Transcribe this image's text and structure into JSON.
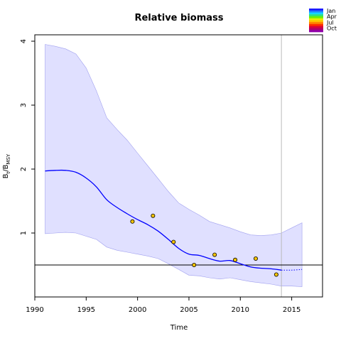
{
  "chart_data": {
    "type": "line",
    "title": "Relative biomass",
    "xlabel": "Time",
    "ylabel": {
      "base": "B",
      "sub1": "t",
      "sep": "/B",
      "sub2": "MSY"
    },
    "xlim": [
      1990,
      2018
    ],
    "ylim": [
      0,
      4.1
    ],
    "xticks": [
      1990,
      1995,
      2000,
      2005,
      2010,
      2015
    ],
    "yticks": [
      1,
      2,
      3,
      4
    ],
    "reference_hline": 0.5,
    "reference_vline": 2014,
    "colors": {
      "estimate": "#0000ff",
      "band_fill": "#e0e0ff",
      "band_edge": "#a0a0ee",
      "points_fill": "#f5c400",
      "reference": "#000000",
      "vline": "#bbbbbb"
    },
    "estimate": {
      "x": [
        1991,
        1992,
        1993,
        1994,
        1995,
        1996,
        1997,
        1998,
        1999,
        2000,
        2001,
        2002,
        2003,
        2004,
        2005,
        2006,
        2007,
        2008,
        2009,
        2010,
        2011,
        2012,
        2013,
        2014
      ],
      "y": [
        1.97,
        1.98,
        1.98,
        1.95,
        1.86,
        1.72,
        1.52,
        1.4,
        1.3,
        1.21,
        1.13,
        1.03,
        0.9,
        0.76,
        0.67,
        0.65,
        0.6,
        0.56,
        0.57,
        0.52,
        0.47,
        0.45,
        0.44,
        0.42
      ]
    },
    "projection": {
      "x": [
        2014,
        2015,
        2016
      ],
      "y": [
        0.42,
        0.42,
        0.43
      ]
    },
    "band": {
      "x": [
        1991,
        1992,
        1993,
        1994,
        1995,
        1996,
        1997,
        1998,
        1999,
        2000,
        2001,
        2002,
        2003,
        2004,
        2005,
        2006,
        2007,
        2008,
        2009,
        2010,
        2011,
        2012,
        2013,
        2014,
        2015,
        2016
      ],
      "upper": [
        3.95,
        3.92,
        3.88,
        3.8,
        3.58,
        3.22,
        2.8,
        2.62,
        2.45,
        2.25,
        2.05,
        1.85,
        1.65,
        1.47,
        1.37,
        1.28,
        1.18,
        1.13,
        1.08,
        1.02,
        0.97,
        0.96,
        0.97,
        1.0,
        1.08,
        1.16
      ],
      "lower": [
        0.99,
        1.0,
        1.01,
        1.0,
        0.95,
        0.9,
        0.78,
        0.73,
        0.7,
        0.67,
        0.64,
        0.6,
        0.52,
        0.43,
        0.34,
        0.33,
        0.3,
        0.28,
        0.3,
        0.27,
        0.24,
        0.22,
        0.2,
        0.17,
        0.17,
        0.16
      ]
    },
    "points": {
      "x": [
        1999.5,
        2001.5,
        2003.5,
        2005.5,
        2007.5,
        2009.5,
        2011.5,
        2013.5
      ],
      "y": [
        1.18,
        1.27,
        0.86,
        0.5,
        0.66,
        0.58,
        0.6,
        0.35
      ]
    },
    "legend": {
      "labels": [
        "Jan",
        "Apr",
        "Jul",
        "Oct"
      ],
      "colors": [
        "#1a1aff",
        "#1f7fff",
        "#14d7ff",
        "#33e07a",
        "#6cf000",
        "#e8f000",
        "#ffc000",
        "#ff7a00",
        "#ff2a00",
        "#d8003c",
        "#b0006a",
        "#9000aa"
      ],
      "position": "top-right"
    }
  }
}
